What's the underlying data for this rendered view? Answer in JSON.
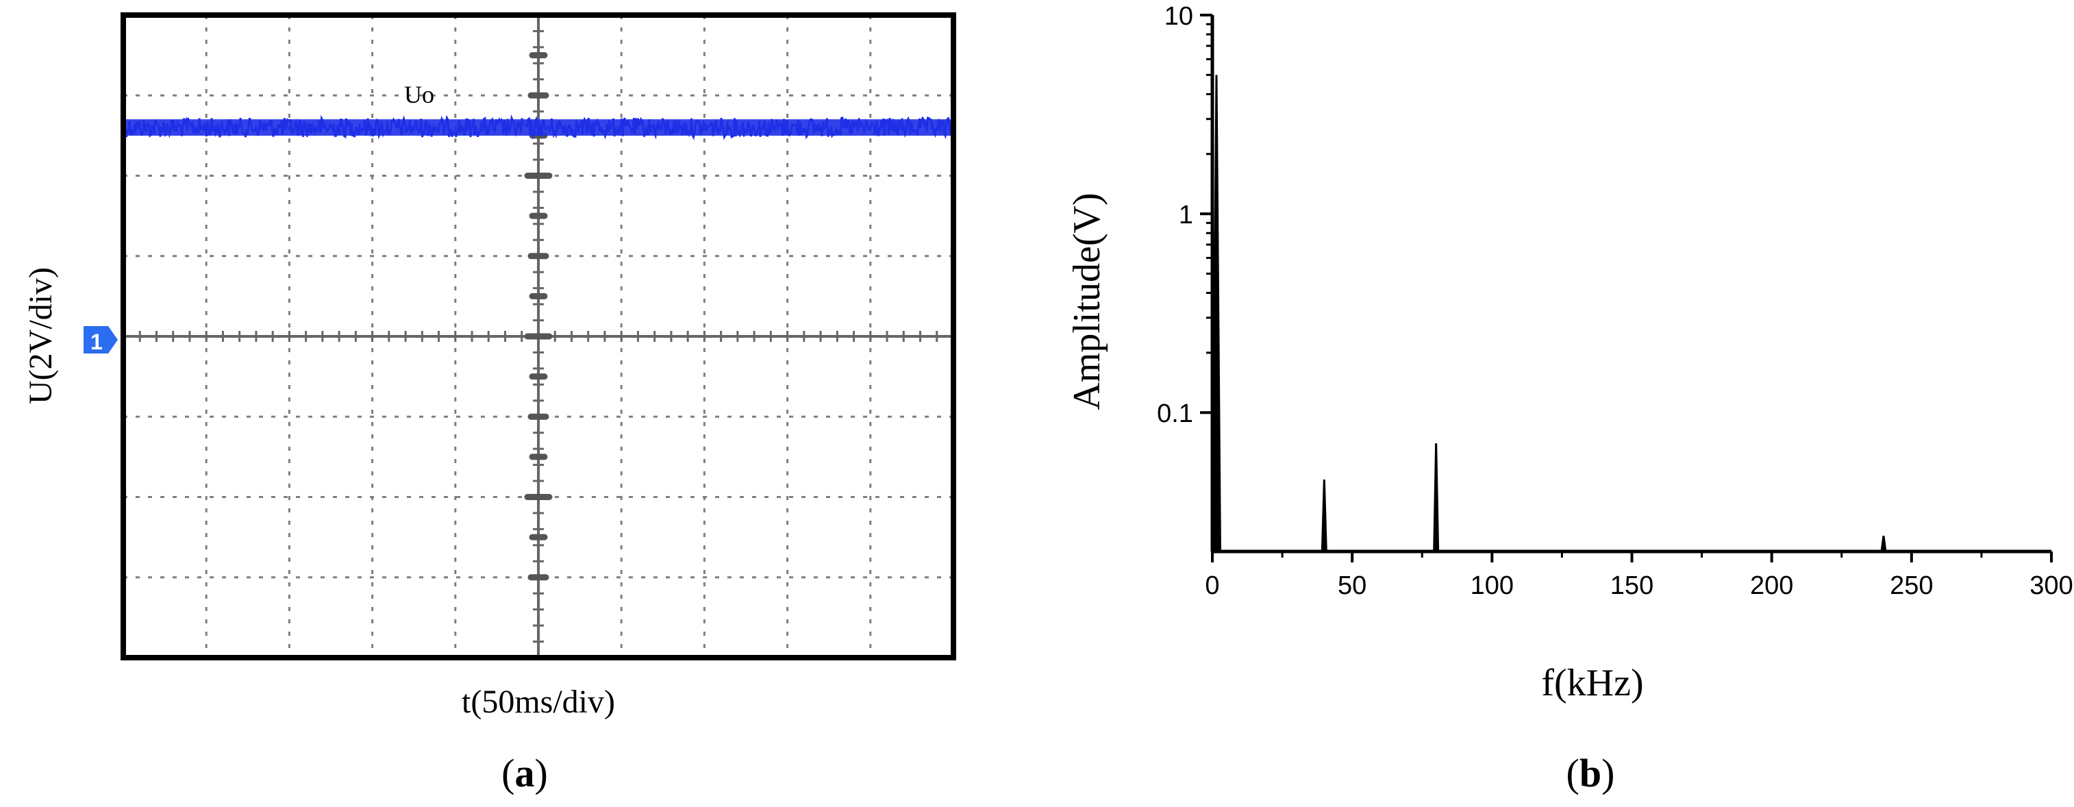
{
  "chart_data": [
    {
      "type": "line",
      "panel_label": "a",
      "ylabel": "U(2V/div)",
      "xlabel": "t(50ms/div)",
      "x_divisions": 10,
      "y_divisions": 8,
      "channel_marker": "1",
      "series": [
        {
          "name": "Uo",
          "color": "#1f2fe6",
          "level_div": 2.6,
          "noise_div": 0.12
        }
      ]
    },
    {
      "type": "bar",
      "panel_label": "b",
      "ylabel": "Amplitude(V)",
      "xlabel": "f(kHz)",
      "xlim": [
        0,
        300
      ],
      "ylim": [
        0.02,
        10
      ],
      "y_scale": "log",
      "x_ticks": [
        "0",
        "50",
        "100",
        "150",
        "200",
        "250",
        "300"
      ],
      "y_ticks": [
        "10",
        "1",
        "0.1"
      ],
      "x_tick_values": [
        0,
        50,
        100,
        150,
        200,
        250,
        300
      ],
      "y_tick_values": [
        10,
        1,
        0.1
      ],
      "series": [
        {
          "x": [
            0,
            40,
            80,
            240
          ],
          "values": [
            5.0,
            0.046,
            0.07,
            0.024
          ],
          "color": "#000000"
        }
      ]
    }
  ]
}
